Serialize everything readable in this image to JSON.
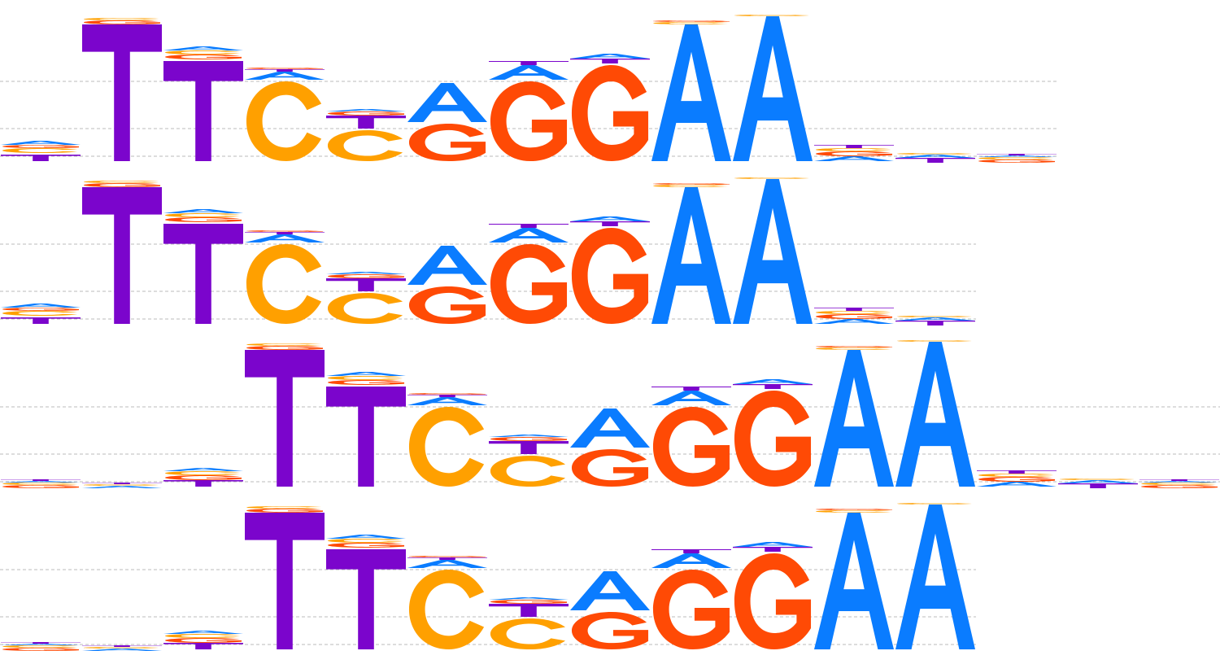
{
  "colors": {
    "A": "#0A7CFF",
    "C": "#FFA000",
    "G": "#FF4A05",
    "T": "#7B05CC",
    "gridline": "#BBBBBB",
    "background": "#FFFFFF"
  },
  "logos": [
    {
      "name": "motif-logo-1",
      "columns": [
        {
          "stack": [
            [
              "T",
              0.1
            ],
            [
              "C",
              0.08
            ],
            [
              "G",
              0.04
            ],
            [
              "A",
              0.05
            ]
          ]
        },
        {
          "stack": [
            [
              "T",
              1.7
            ],
            [
              "G",
              0.05
            ],
            [
              "C",
              0.03
            ]
          ]
        },
        {
          "stack": [
            [
              "T",
              1.25
            ],
            [
              "G",
              0.08
            ],
            [
              "C",
              0.05
            ],
            [
              "A",
              0.05
            ]
          ]
        },
        {
          "stack": [
            [
              "C",
              1.0
            ],
            [
              "A",
              0.12
            ],
            [
              "T",
              0.03
            ],
            [
              "G",
              0.02
            ]
          ]
        },
        {
          "stack": [
            [
              "C",
              0.4
            ],
            [
              "T",
              0.18
            ],
            [
              "G",
              0.05
            ],
            [
              "A",
              0.03
            ]
          ]
        },
        {
          "stack": [
            [
              "G",
              0.48
            ],
            [
              "A",
              0.5
            ]
          ]
        },
        {
          "stack": [
            [
              "G",
              1.0
            ],
            [
              "A",
              0.2
            ],
            [
              "T",
              0.05
            ]
          ]
        },
        {
          "stack": [
            [
              "G",
              1.2
            ],
            [
              "T",
              0.08
            ],
            [
              "A",
              0.06
            ]
          ]
        },
        {
          "stack": [
            [
              "A",
              1.7
            ],
            [
              "C",
              0.03
            ],
            [
              "G",
              0.02
            ]
          ]
        },
        {
          "stack": [
            [
              "A",
              1.8
            ],
            [
              "C",
              0.02
            ]
          ]
        },
        {
          "stack": [
            [
              "A",
              0.08
            ],
            [
              "G",
              0.06
            ],
            [
              "C",
              0.04
            ],
            [
              "T",
              0.04
            ]
          ]
        },
        {
          "stack": [
            [
              "T",
              0.06
            ],
            [
              "A",
              0.04
            ],
            [
              "C",
              0.02
            ]
          ]
        },
        {
          "stack": [
            [
              "G",
              0.04
            ],
            [
              "C",
              0.03
            ],
            [
              "A",
              0.02
            ],
            [
              "T",
              0.02
            ]
          ]
        }
      ]
    },
    {
      "name": "motif-logo-2",
      "columns": [
        {
          "stack": [
            [
              "T",
              0.1
            ],
            [
              "C",
              0.08
            ],
            [
              "G",
              0.04
            ],
            [
              "A",
              0.05
            ]
          ]
        },
        {
          "stack": [
            [
              "T",
              1.7
            ],
            [
              "G",
              0.05
            ],
            [
              "C",
              0.03
            ]
          ]
        },
        {
          "stack": [
            [
              "T",
              1.25
            ],
            [
              "G",
              0.08
            ],
            [
              "C",
              0.05
            ],
            [
              "A",
              0.05
            ]
          ]
        },
        {
          "stack": [
            [
              "C",
              1.0
            ],
            [
              "A",
              0.12
            ],
            [
              "T",
              0.03
            ],
            [
              "G",
              0.02
            ]
          ]
        },
        {
          "stack": [
            [
              "C",
              0.4
            ],
            [
              "T",
              0.18
            ],
            [
              "G",
              0.05
            ],
            [
              "A",
              0.03
            ]
          ]
        },
        {
          "stack": [
            [
              "G",
              0.48
            ],
            [
              "A",
              0.5
            ]
          ]
        },
        {
          "stack": [
            [
              "G",
              1.0
            ],
            [
              "A",
              0.2
            ],
            [
              "T",
              0.05
            ]
          ]
        },
        {
          "stack": [
            [
              "G",
              1.2
            ],
            [
              "T",
              0.08
            ],
            [
              "A",
              0.06
            ]
          ]
        },
        {
          "stack": [
            [
              "A",
              1.7
            ],
            [
              "C",
              0.03
            ],
            [
              "G",
              0.02
            ]
          ]
        },
        {
          "stack": [
            [
              "A",
              1.8
            ],
            [
              "C",
              0.02
            ]
          ]
        },
        {
          "stack": [
            [
              "A",
              0.08
            ],
            [
              "G",
              0.06
            ],
            [
              "C",
              0.04
            ],
            [
              "T",
              0.04
            ]
          ]
        },
        {
          "stack": [
            [
              "T",
              0.06
            ],
            [
              "A",
              0.04
            ],
            [
              "C",
              0.02
            ]
          ]
        }
      ]
    },
    {
      "name": "motif-logo-3",
      "columns": [
        {
          "stack": [
            [
              "G",
              0.04
            ],
            [
              "C",
              0.03
            ],
            [
              "A",
              0.02
            ],
            [
              "T",
              0.02
            ]
          ]
        },
        {
          "stack": [
            [
              "A",
              0.03
            ],
            [
              "C",
              0.02
            ],
            [
              "T",
              0.02
            ]
          ]
        },
        {
          "stack": [
            [
              "T",
              0.1
            ],
            [
              "G",
              0.06
            ],
            [
              "C",
              0.05
            ],
            [
              "A",
              0.04
            ]
          ]
        },
        {
          "stack": [
            [
              "T",
              1.7
            ],
            [
              "G",
              0.05
            ],
            [
              "C",
              0.03
            ]
          ]
        },
        {
          "stack": [
            [
              "T",
              1.25
            ],
            [
              "G",
              0.08
            ],
            [
              "C",
              0.05
            ],
            [
              "A",
              0.05
            ]
          ]
        },
        {
          "stack": [
            [
              "C",
              1.0
            ],
            [
              "A",
              0.12
            ],
            [
              "T",
              0.03
            ],
            [
              "G",
              0.02
            ]
          ]
        },
        {
          "stack": [
            [
              "C",
              0.4
            ],
            [
              "T",
              0.18
            ],
            [
              "G",
              0.05
            ],
            [
              "A",
              0.03
            ]
          ]
        },
        {
          "stack": [
            [
              "G",
              0.48
            ],
            [
              "A",
              0.5
            ]
          ]
        },
        {
          "stack": [
            [
              "G",
              1.0
            ],
            [
              "A",
              0.2
            ],
            [
              "T",
              0.05
            ]
          ]
        },
        {
          "stack": [
            [
              "G",
              1.2
            ],
            [
              "T",
              0.08
            ],
            [
              "A",
              0.06
            ]
          ]
        },
        {
          "stack": [
            [
              "A",
              1.7
            ],
            [
              "C",
              0.03
            ],
            [
              "G",
              0.02
            ]
          ]
        },
        {
          "stack": [
            [
              "A",
              1.8
            ],
            [
              "C",
              0.02
            ]
          ]
        },
        {
          "stack": [
            [
              "A",
              0.08
            ],
            [
              "G",
              0.06
            ],
            [
              "C",
              0.04
            ],
            [
              "T",
              0.04
            ]
          ]
        },
        {
          "stack": [
            [
              "T",
              0.06
            ],
            [
              "A",
              0.04
            ],
            [
              "C",
              0.02
            ]
          ]
        },
        {
          "stack": [
            [
              "G",
              0.04
            ],
            [
              "C",
              0.03
            ],
            [
              "A",
              0.02
            ],
            [
              "T",
              0.02
            ]
          ]
        }
      ]
    },
    {
      "name": "motif-logo-4",
      "columns": [
        {
          "stack": [
            [
              "G",
              0.04
            ],
            [
              "C",
              0.03
            ],
            [
              "A",
              0.02
            ],
            [
              "T",
              0.02
            ]
          ]
        },
        {
          "stack": [
            [
              "A",
              0.03
            ],
            [
              "C",
              0.02
            ],
            [
              "T",
              0.02
            ]
          ]
        },
        {
          "stack": [
            [
              "T",
              0.1
            ],
            [
              "G",
              0.06
            ],
            [
              "C",
              0.05
            ],
            [
              "A",
              0.04
            ]
          ]
        },
        {
          "stack": [
            [
              "T",
              1.7
            ],
            [
              "G",
              0.05
            ],
            [
              "C",
              0.03
            ]
          ]
        },
        {
          "stack": [
            [
              "T",
              1.25
            ],
            [
              "G",
              0.08
            ],
            [
              "C",
              0.05
            ],
            [
              "A",
              0.05
            ]
          ]
        },
        {
          "stack": [
            [
              "C",
              1.0
            ],
            [
              "A",
              0.12
            ],
            [
              "T",
              0.03
            ],
            [
              "G",
              0.02
            ]
          ]
        },
        {
          "stack": [
            [
              "C",
              0.4
            ],
            [
              "T",
              0.18
            ],
            [
              "G",
              0.05
            ],
            [
              "A",
              0.03
            ]
          ]
        },
        {
          "stack": [
            [
              "G",
              0.48
            ],
            [
              "A",
              0.5
            ]
          ]
        },
        {
          "stack": [
            [
              "G",
              1.0
            ],
            [
              "A",
              0.2
            ],
            [
              "T",
              0.05
            ]
          ]
        },
        {
          "stack": [
            [
              "G",
              1.2
            ],
            [
              "T",
              0.08
            ],
            [
              "A",
              0.06
            ]
          ]
        },
        {
          "stack": [
            [
              "A",
              1.7
            ],
            [
              "C",
              0.03
            ],
            [
              "G",
              0.02
            ]
          ]
        },
        {
          "stack": [
            [
              "A",
              1.8
            ],
            [
              "C",
              0.02
            ]
          ]
        }
      ]
    }
  ]
}
